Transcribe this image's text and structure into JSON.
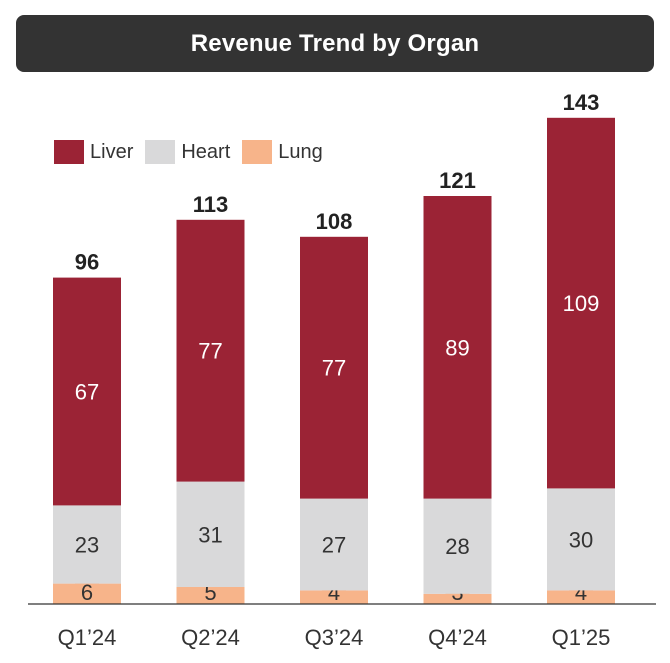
{
  "chart_data": {
    "type": "bar",
    "stacked": true,
    "title": "Revenue Trend by Organ",
    "categories": [
      "Q1’24",
      "Q2’24",
      "Q3’24",
      "Q4’24",
      "Q1’25"
    ],
    "series": [
      {
        "name": "Lung",
        "values": [
          6,
          5,
          4,
          3,
          4
        ],
        "color": "#F7B48A"
      },
      {
        "name": "Heart",
        "values": [
          23,
          31,
          27,
          28,
          30
        ],
        "color": "#D9D9DA"
      },
      {
        "name": "Liver",
        "values": [
          67,
          77,
          77,
          89,
          109
        ],
        "color": "#9B2335"
      }
    ],
    "totals": [
      96,
      113,
      108,
      121,
      143
    ],
    "legend_order": [
      "Liver",
      "Heart",
      "Lung"
    ],
    "legend_position": "top-left",
    "xlabel": "",
    "ylabel": "",
    "ylim": [
      0,
      143
    ],
    "grid": false
  }
}
